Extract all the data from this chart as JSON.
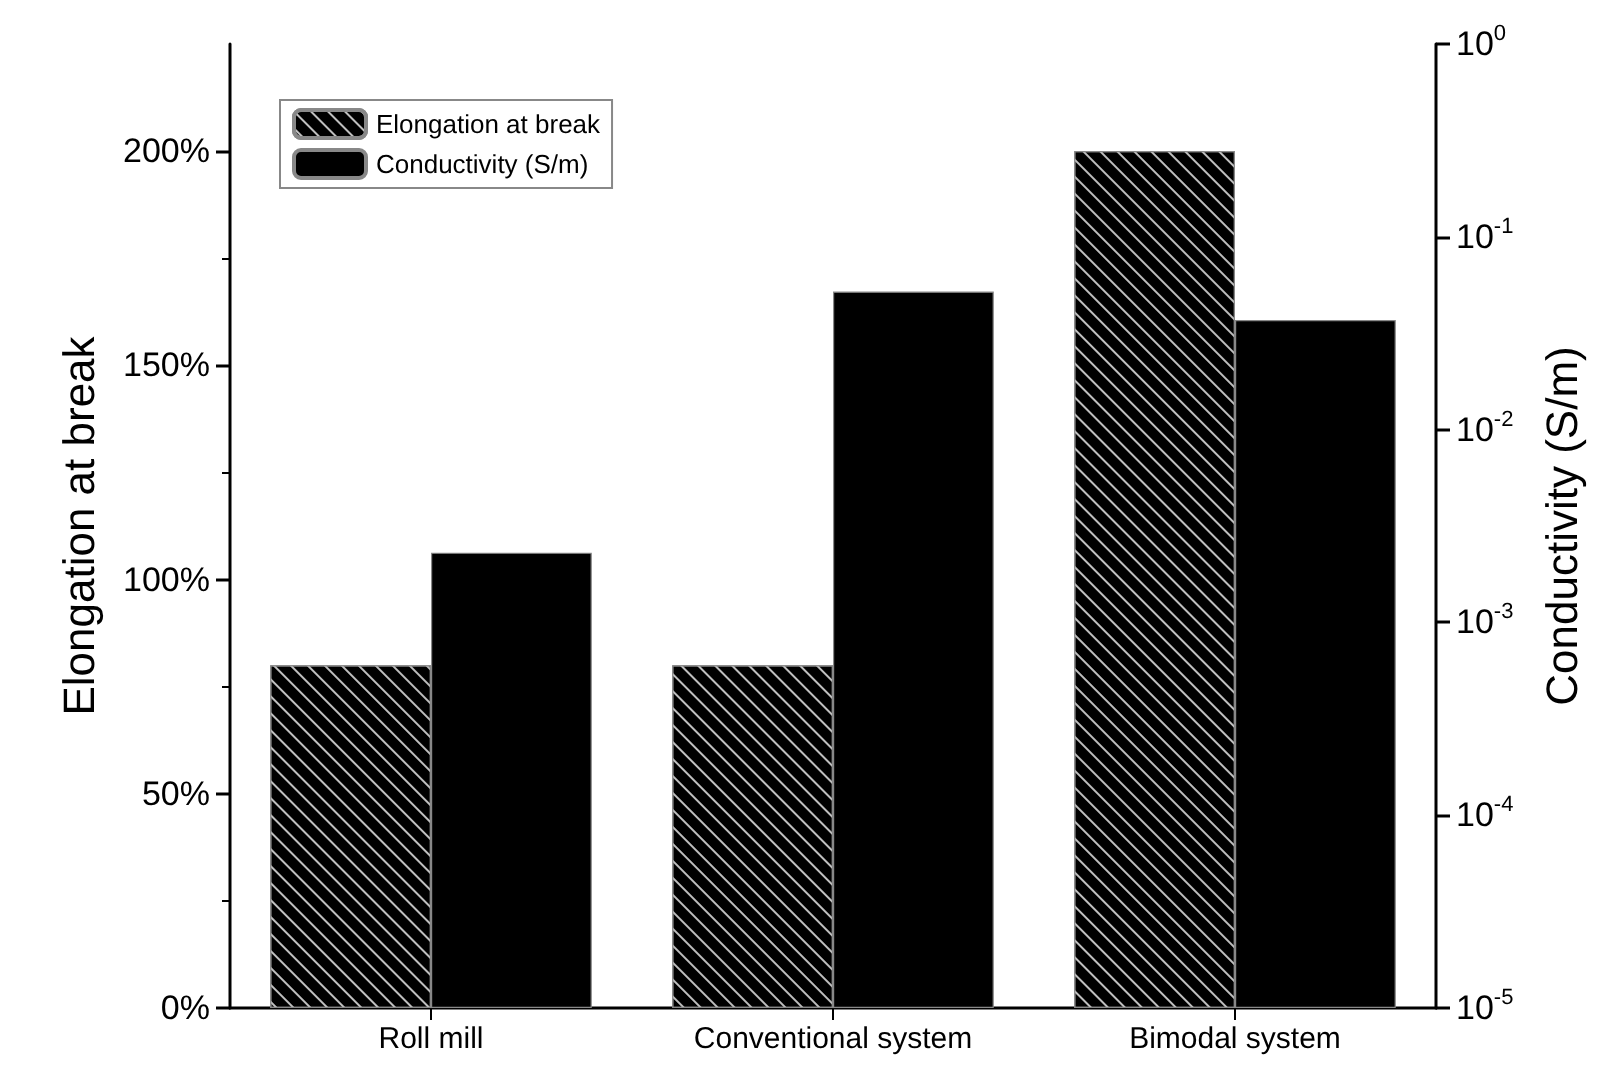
{
  "chart_data": {
    "type": "bar",
    "categories": [
      "Roll mill",
      "Conventional system",
      "Bimodal system"
    ],
    "series": [
      {
        "name": "Elongation at break",
        "color": "#000000",
        "values": [
          80,
          80,
          200
        ]
      },
      {
        "name": "Conductivity (S/m)",
        "color": "#000000",
        "axis": "y2",
        "values": [
          0.0023,
          0.052,
          0.037
        ]
      }
    ],
    "ylabel": "Elongation at break",
    "y2label": "Conductivity (S/m)",
    "ylim": [
      0,
      225
    ],
    "yticks": [
      {
        "value": 0,
        "label": "0%"
      },
      {
        "value": 50,
        "label": "50%"
      },
      {
        "value": 100,
        "label": "100%"
      },
      {
        "value": 150,
        "label": "150%"
      },
      {
        "value": 200,
        "label": "200%"
      }
    ],
    "y2lim": [
      1e-05,
      1
    ],
    "y2ticks": [
      {
        "value": 1e-05,
        "label": "10$^{-5}$"
      },
      {
        "value": 0.0001,
        "label": "10$^{-4}$"
      },
      {
        "value": 0.001,
        "label": "10$^{-3}$"
      },
      {
        "value": 0.01,
        "label": "10$^{-2}$"
      },
      {
        "value": 0.1,
        "label": "10$^{-1}$"
      },
      {
        "value": 1,
        "label": "10$^{0}$"
      }
    ],
    "log": "y2",
    "grid": false,
    "legend": "top left"
  }
}
